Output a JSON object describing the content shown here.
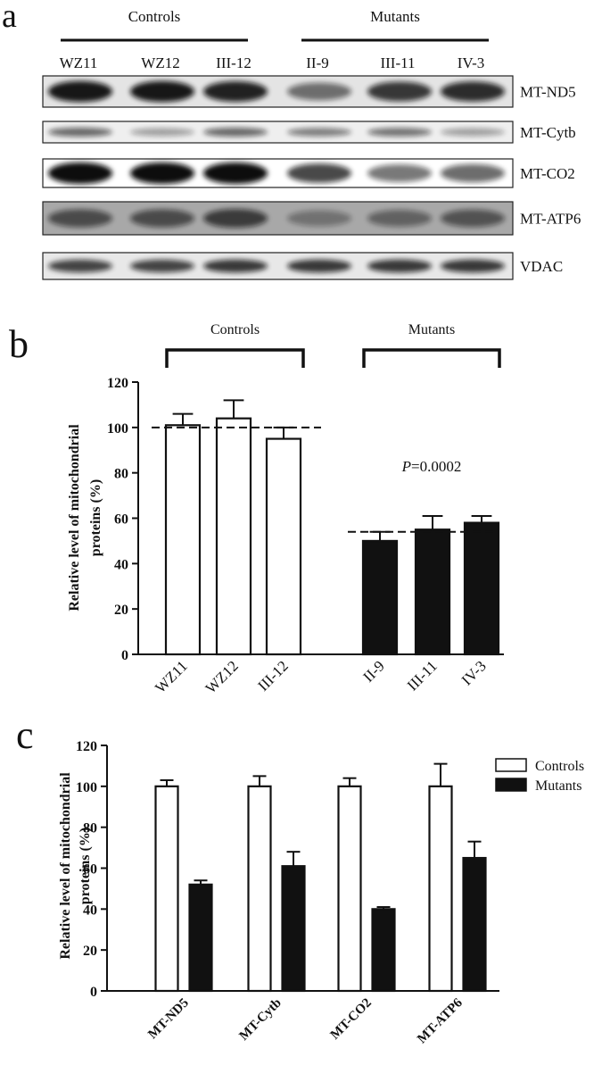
{
  "blot": {
    "panel": "a",
    "groups": [
      "Controls",
      "Mutants"
    ],
    "lanes": [
      "WZ11",
      "WZ12",
      "III-12",
      "II-9",
      "III-11",
      "IV-3"
    ],
    "proteins": [
      "MT-ND5",
      "MT-Cytb",
      "MT-CO2",
      "MT-ATP6",
      "VDAC"
    ]
  },
  "chart_data": [
    {
      "type": "bar",
      "panel": "b",
      "ylabel": [
        "Relative level of mitochondrial",
        "proteins (%)"
      ],
      "categories": [
        "WZ11",
        "WZ12",
        "III-12",
        "II-9",
        "III-11",
        "IV-3"
      ],
      "values": [
        101,
        104,
        95,
        50,
        55,
        58
      ],
      "errors": [
        5,
        8,
        5,
        4,
        6,
        3
      ],
      "colors": [
        "#ffffff",
        "#ffffff",
        "#ffffff",
        "#111111",
        "#111111",
        "#111111"
      ],
      "groups": [
        "Controls",
        "Mutants"
      ],
      "reference_lines": [
        100,
        54
      ],
      "annotation": {
        "italic": "P",
        "text": "=0.0002"
      },
      "ylim": [
        0,
        120
      ],
      "yticks": [
        0,
        20,
        40,
        60,
        80,
        100,
        120
      ]
    },
    {
      "type": "grouped_bar",
      "panel": "c",
      "ylabel": [
        "Relative level of mitochondrial",
        "proteins (%)"
      ],
      "categories": [
        "MT-ND5",
        "MT-Cytb",
        "MT-CO2",
        "MT-ATP6"
      ],
      "series": [
        {
          "name": "Controls",
          "color": "#ffffff",
          "values": [
            100,
            100,
            100,
            100
          ],
          "errors": [
            3,
            5,
            4,
            11
          ]
        },
        {
          "name": "Mutants",
          "color": "#111111",
          "values": [
            52,
            61,
            40,
            65
          ],
          "errors": [
            2,
            7,
            1,
            8
          ]
        }
      ],
      "legend": "upper right",
      "ylim": [
        0,
        120
      ],
      "yticks": [
        0,
        20,
        40,
        60,
        80,
        100,
        120
      ]
    }
  ]
}
